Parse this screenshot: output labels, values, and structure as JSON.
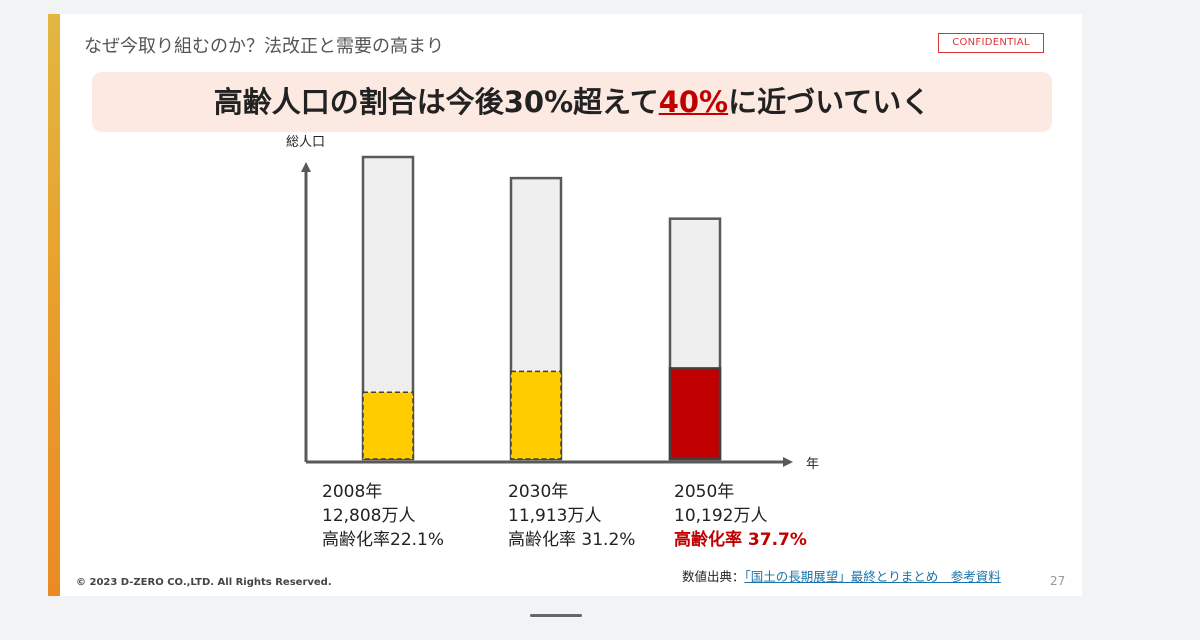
{
  "slide": {
    "title": "なぜ今取り組むのか？法改正と需要の高まり",
    "confidential": "CONFIDENTIAL",
    "headline_before": "高齢人口の割合は今後30%超えて",
    "headline_highlight": "40%",
    "headline_after": "に近づいていく",
    "source_label": "数値出典：",
    "source_link": "「国土の長期展望」最終とりまとめ　参考資料",
    "copyright": "© 2023 D-ZERO CO.,LTD. All Rights Reserved.",
    "page_number": "27"
  },
  "colors": {
    "accent": "#c00000",
    "bar_total": "#efefef",
    "bar_elderly": "#ffcc00",
    "bar_elderly_highlight": "#c00000"
  },
  "chart_data": {
    "type": "bar",
    "ylabel": "総人口",
    "xlabel": "年",
    "categories": [
      "2008年",
      "2030年",
      "2050年"
    ],
    "series": [
      {
        "name": "総人口",
        "values": [
          12808,
          11913,
          10192
        ]
      },
      {
        "name": "高齢化率",
        "values": [
          22.1,
          31.2,
          37.7
        ]
      }
    ],
    "labels": [
      {
        "year": "2008年",
        "total": "12,808万人",
        "rate": "高齢化率22.1%"
      },
      {
        "year": "2030年",
        "total": "11,913万人",
        "rate": "高齢化率 31.2%"
      },
      {
        "year": "2050年",
        "total": "10,192万人",
        "rate": "高齢化率 37.7%"
      }
    ],
    "highlight_index": 2
  }
}
